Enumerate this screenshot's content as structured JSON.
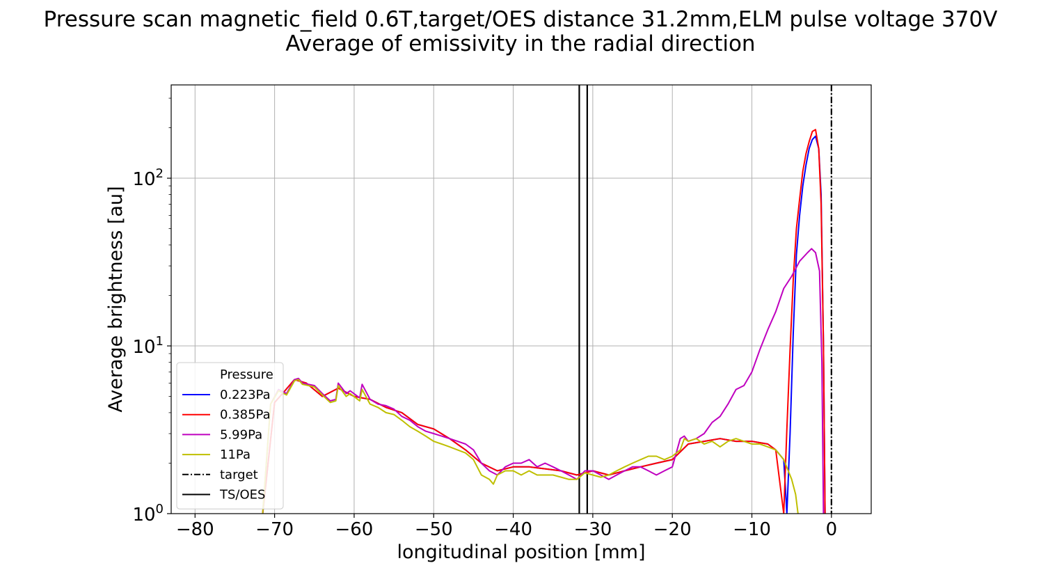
{
  "chart_data": {
    "type": "line",
    "title": "Pressure scan magnetic_field 0.6T,target/OES distance 31.2mm,ELM pulse voltage 370V",
    "subtitle": "Average of emissivity in the radial direction",
    "xlabel": "longitudinal position [mm]",
    "ylabel": "Average brightness [au]",
    "xlim": [
      -83,
      5
    ],
    "ylim": [
      1,
      360
    ],
    "yscale": "log",
    "grid": true,
    "x_ticks": [
      -80,
      -70,
      -60,
      -50,
      -40,
      -30,
      -20,
      -10,
      0
    ],
    "x_tick_labels": [
      "−80",
      "−70",
      "−60",
      "−50",
      "−40",
      "−30",
      "−20",
      "−10",
      "0"
    ],
    "y_ticks": [
      {
        "value": 1,
        "base": "10",
        "exp": "0"
      },
      {
        "value": 10,
        "base": "10",
        "exp": "1"
      },
      {
        "value": 100,
        "base": "10",
        "exp": "2"
      }
    ],
    "legend": {
      "title": "Pressure",
      "placement": "lower-left",
      "entries": [
        {
          "label": "0.223Pa",
          "color": "#0000ff",
          "style": "solid"
        },
        {
          "label": "0.385Pa",
          "color": "#ff0000",
          "style": "solid"
        },
        {
          "label": "5.99Pa",
          "color": "#bf00bf",
          "style": "solid"
        },
        {
          "label": "11Pa",
          "color": "#bfbf00",
          "style": "solid"
        },
        {
          "label": "target",
          "color": "#000000",
          "style": "dashdot"
        },
        {
          "label": "TS/OES",
          "color": "#000000",
          "style": "solid"
        }
      ]
    },
    "vlines": [
      {
        "name": "target",
        "x": 0,
        "style": "dashdot",
        "color": "#000000"
      },
      {
        "name": "TS/OES",
        "x": -31.7,
        "style": "solid",
        "color": "#000000"
      },
      {
        "name": "TS/OES",
        "x": -30.7,
        "style": "solid",
        "color": "#000000"
      }
    ],
    "series": [
      {
        "name": "0.223Pa",
        "color": "#0000ff",
        "x": [
          -71.5,
          -70,
          -69,
          -67.5,
          -66,
          -64,
          -62,
          -60,
          -58,
          -56,
          -54,
          -52,
          -50,
          -48,
          -46,
          -44,
          -42,
          -40,
          -38,
          -36,
          -34,
          -32,
          -30,
          -28,
          -26,
          -24,
          -22,
          -20,
          -18,
          -16,
          -14,
          -12,
          -10,
          -8,
          -7,
          -6,
          -5.6,
          -5.2,
          -4.8,
          -4.4,
          -4.0,
          -3.6,
          -3.2,
          -2.8,
          -2.4,
          -2.0,
          -1.6,
          -1.3,
          -1.0,
          -0.8
        ],
        "y": [
          1.0,
          4.6,
          5.2,
          6.3,
          6.0,
          5.0,
          5.6,
          5.0,
          4.8,
          4.3,
          4.0,
          3.4,
          3.2,
          2.8,
          2.4,
          2.0,
          1.8,
          1.9,
          1.9,
          1.85,
          1.8,
          1.7,
          1.8,
          1.7,
          1.8,
          1.9,
          2.0,
          2.1,
          2.6,
          2.7,
          2.8,
          2.7,
          2.7,
          2.6,
          2.4,
          2.1,
          1.0,
          3.0,
          12,
          35,
          60,
          90,
          120,
          150,
          170,
          178,
          150,
          80,
          10,
          1.0
        ]
      },
      {
        "name": "0.385Pa",
        "color": "#ff0000",
        "x": [
          -71.5,
          -70,
          -69,
          -67.5,
          -66,
          -64,
          -62,
          -60,
          -58,
          -56,
          -54,
          -52,
          -50,
          -48,
          -46,
          -44,
          -42,
          -40,
          -38,
          -36,
          -34,
          -32,
          -30,
          -28,
          -26,
          -24,
          -22,
          -20,
          -18,
          -16,
          -14,
          -12,
          -10,
          -8,
          -7,
          -6.0,
          -5.6,
          -5.2,
          -4.8,
          -4.4,
          -4.0,
          -3.6,
          -3.2,
          -2.8,
          -2.4,
          -2.0,
          -1.6,
          -1.3,
          -1.0,
          -0.8
        ],
        "y": [
          1.0,
          4.6,
          5.2,
          6.3,
          6.0,
          5.0,
          5.6,
          5.0,
          4.8,
          4.3,
          4.0,
          3.4,
          3.2,
          2.8,
          2.4,
          2.0,
          1.8,
          1.9,
          1.9,
          1.85,
          1.8,
          1.7,
          1.8,
          1.7,
          1.8,
          1.9,
          2.0,
          2.1,
          2.6,
          2.7,
          2.8,
          2.7,
          2.7,
          2.6,
          2.4,
          1.0,
          3.2,
          9.5,
          25,
          50,
          75,
          110,
          140,
          165,
          190,
          195,
          150,
          70,
          10,
          1.0
        ]
      },
      {
        "name": "5.99Pa",
        "color": "#bf00bf",
        "x": [
          -71.5,
          -70.5,
          -69.5,
          -68.5,
          -67.5,
          -67,
          -66.5,
          -65,
          -64,
          -63,
          -62.3,
          -62,
          -61,
          -60.5,
          -59.3,
          -59,
          -58,
          -57,
          -56,
          -55,
          -54,
          -53,
          -52,
          -51,
          -50,
          -49,
          -48,
          -47,
          -46,
          -45,
          -44,
          -43,
          -42,
          -41,
          -40,
          -39,
          -38,
          -37,
          -36,
          -35,
          -34,
          -33,
          -32,
          -31,
          -30,
          -29,
          -28,
          -27,
          -26,
          -25,
          -24,
          -23,
          -22,
          -21,
          -20,
          -19,
          -18.5,
          -18,
          -17,
          -16,
          -15,
          -14,
          -13,
          -12,
          -11,
          -10,
          -9,
          -8,
          -7,
          -6,
          -5,
          -4,
          -3,
          -2.5,
          -2,
          -1.5,
          -1.2,
          -1.0
        ],
        "y": [
          1.0,
          4.5,
          5.5,
          5.2,
          6.3,
          6.4,
          6.0,
          5.8,
          5.2,
          4.7,
          4.8,
          6.0,
          5.2,
          5.4,
          4.9,
          5.9,
          4.8,
          4.5,
          4.4,
          4.2,
          3.8,
          3.6,
          3.3,
          3.1,
          3.0,
          2.9,
          2.8,
          2.7,
          2.6,
          2.4,
          2.0,
          1.8,
          1.7,
          1.9,
          2.0,
          2.0,
          2.1,
          1.9,
          2.0,
          1.9,
          1.8,
          1.7,
          1.6,
          1.8,
          1.8,
          1.7,
          1.6,
          1.7,
          1.8,
          1.9,
          1.9,
          1.8,
          1.7,
          1.8,
          1.9,
          2.8,
          2.9,
          2.7,
          2.8,
          3.0,
          3.5,
          3.8,
          4.5,
          5.5,
          5.8,
          7.0,
          9.5,
          12.5,
          16,
          22,
          26,
          32,
          36,
          38,
          36,
          28,
          8,
          1.0
        ]
      },
      {
        "name": "11Pa",
        "color": "#bfbf00",
        "x": [
          -71.5,
          -70.5,
          -69.5,
          -68.5,
          -67.5,
          -67,
          -66.5,
          -65,
          -64,
          -63,
          -62.3,
          -62,
          -61,
          -60.5,
          -59.3,
          -59,
          -58,
          -57,
          -56,
          -55,
          -54,
          -53,
          -52,
          -51,
          -50,
          -49,
          -48,
          -47,
          -46,
          -45,
          -44,
          -43,
          -42.5,
          -42,
          -41,
          -40,
          -39,
          -38,
          -37,
          -36,
          -35,
          -34,
          -33,
          -32,
          -31,
          -30,
          -29,
          -28,
          -27,
          -26,
          -25,
          -24,
          -23,
          -22,
          -21,
          -20,
          -19,
          -18.5,
          -18,
          -17,
          -16,
          -15,
          -14,
          -13,
          -12,
          -11,
          -10,
          -9,
          -8,
          -7,
          -6,
          -5,
          -4.5,
          -4.2
        ],
        "y": [
          1.0,
          4.5,
          5.4,
          5.1,
          6.2,
          6.3,
          5.9,
          5.7,
          5.1,
          4.6,
          4.7,
          5.8,
          5.0,
          5.2,
          4.7,
          5.5,
          4.5,
          4.3,
          4.0,
          3.9,
          3.6,
          3.3,
          3.1,
          2.9,
          2.7,
          2.6,
          2.5,
          2.4,
          2.3,
          2.1,
          1.7,
          1.6,
          1.5,
          1.7,
          1.8,
          1.8,
          1.7,
          1.8,
          1.7,
          1.7,
          1.7,
          1.65,
          1.6,
          1.6,
          1.75,
          1.7,
          1.65,
          1.7,
          1.8,
          1.9,
          2.0,
          2.1,
          2.2,
          2.2,
          2.1,
          2.2,
          2.4,
          2.8,
          2.7,
          2.8,
          2.6,
          2.7,
          2.5,
          2.7,
          2.8,
          2.7,
          2.6,
          2.6,
          2.5,
          2.4,
          2.1,
          1.6,
          1.3,
          1.0
        ]
      }
    ]
  }
}
